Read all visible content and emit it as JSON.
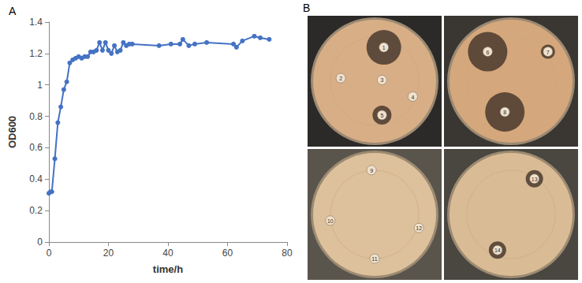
{
  "chart_data": {
    "type": "line",
    "title": "A",
    "x_label": "time/h",
    "y_label": "OD600",
    "x": [
      0,
      0.5,
      1,
      2,
      3,
      4,
      5,
      6,
      7,
      8,
      9,
      10,
      11,
      12,
      13,
      14,
      15,
      16,
      17,
      18,
      19,
      20,
      21,
      22,
      23,
      24,
      25,
      26,
      27,
      28,
      37,
      41,
      44,
      45,
      47,
      49,
      53,
      62,
      63,
      65,
      69,
      71,
      74
    ],
    "values": [
      0.31,
      0.32,
      0.32,
      0.53,
      0.76,
      0.86,
      0.97,
      1.02,
      1.14,
      1.16,
      1.17,
      1.18,
      1.17,
      1.18,
      1.18,
      1.21,
      1.21,
      1.22,
      1.27,
      1.22,
      1.27,
      1.22,
      1.2,
      1.25,
      1.21,
      1.22,
      1.27,
      1.25,
      1.26,
      1.26,
      1.25,
      1.26,
      1.26,
      1.29,
      1.25,
      1.26,
      1.27,
      1.26,
      1.24,
      1.28,
      1.31,
      1.3,
      1.29
    ],
    "color": "#4472c4",
    "marker": "circle",
    "grid": false,
    "xlim": [
      0,
      80
    ],
    "xticks": [
      0,
      20,
      40,
      60,
      80
    ],
    "ylim": [
      0,
      1.4
    ],
    "yticks": [
      0,
      0.2,
      0.4,
      0.6,
      0.8,
      1,
      1.2,
      1.4
    ]
  },
  "photo_panel": {
    "label": "B",
    "plates": [
      [
        "1",
        "2",
        "3",
        "4",
        "5"
      ],
      [
        "6",
        "7",
        "8"
      ],
      [
        "9",
        "10",
        "11",
        "12"
      ],
      [
        "13",
        "14"
      ]
    ]
  }
}
